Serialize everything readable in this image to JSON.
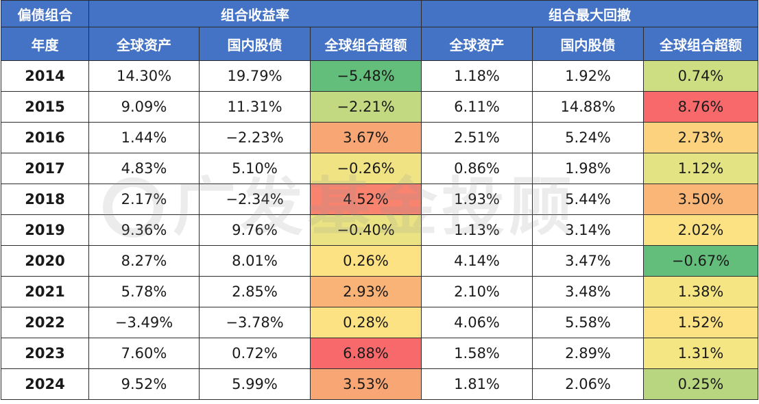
{
  "header": {
    "corner_label": "偏债组合",
    "group_return": "组合收益率",
    "group_drawdown": "组合最大回撤",
    "year_label": "年度",
    "col_global": "全球资产",
    "col_domestic": "国内股债",
    "col_excess": "全球组合超额"
  },
  "watermark": {
    "text": "广发基金投顾"
  },
  "colors": {
    "header_bg": "#4472c4",
    "deep_green": "#63be7b",
    "light_green": "#cddd82",
    "yellow_green": "#e3e383",
    "yellow": "#fde283",
    "light_orange": "#fbc77b",
    "orange": "#f8a774",
    "orange_red": "#f8836f",
    "red": "#f8696b"
  },
  "rows": [
    {
      "year": "2014",
      "ret_global": "14.30%",
      "ret_domestic": "19.79%",
      "ret_excess": "−5.48%",
      "dd_global": "1.18%",
      "dd_domestic": "1.92%",
      "dd_excess": "0.74%",
      "ret_color": "#63be7b",
      "dd_color": "#cddd82"
    },
    {
      "year": "2015",
      "ret_global": "9.09%",
      "ret_domestic": "11.31%",
      "ret_excess": "−2.21%",
      "dd_global": "6.11%",
      "dd_domestic": "14.88%",
      "dd_excess": "8.76%",
      "ret_color": "#c3d981",
      "dd_color": "#f8696b"
    },
    {
      "year": "2016",
      "ret_global": "1.44%",
      "ret_domestic": "−2.23%",
      "ret_excess": "3.67%",
      "dd_global": "2.51%",
      "dd_domestic": "5.24%",
      "dd_excess": "2.73%",
      "ret_color": "#f8a774",
      "dd_color": "#fcd27f"
    },
    {
      "year": "2017",
      "ret_global": "4.83%",
      "ret_domestic": "5.10%",
      "ret_excess": "−0.26%",
      "dd_global": "0.86%",
      "dd_domestic": "1.98%",
      "dd_excess": "1.12%",
      "ret_color": "#f0e383",
      "dd_color": "#e3e383"
    },
    {
      "year": "2018",
      "ret_global": "2.17%",
      "ret_domestic": "−2.34%",
      "ret_excess": "4.52%",
      "dd_global": "1.93%",
      "dd_domestic": "5.44%",
      "dd_excess": "3.50%",
      "ret_color": "#f8836f",
      "dd_color": "#f9b677"
    },
    {
      "year": "2019",
      "ret_global": "9.36%",
      "ret_domestic": "9.76%",
      "ret_excess": "−0.40%",
      "dd_global": "1.13%",
      "dd_domestic": "3.14%",
      "dd_excess": "2.02%",
      "ret_color": "#ebe383",
      "dd_color": "#fde283"
    },
    {
      "year": "2020",
      "ret_global": "8.27%",
      "ret_domestic": "8.01%",
      "ret_excess": "0.26%",
      "dd_global": "4.14%",
      "dd_domestic": "3.47%",
      "dd_excess": "−0.67%",
      "ret_color": "#fde283",
      "dd_color": "#63be7b"
    },
    {
      "year": "2021",
      "ret_global": "5.78%",
      "ret_domestic": "2.85%",
      "ret_excess": "2.93%",
      "dd_global": "2.10%",
      "dd_domestic": "3.48%",
      "dd_excess": "1.38%",
      "ret_color": "#f9b377",
      "dd_color": "#f6e683"
    },
    {
      "year": "2022",
      "ret_global": "−3.49%",
      "ret_domestic": "−3.78%",
      "ret_excess": "0.28%",
      "dd_global": "4.06%",
      "dd_domestic": "5.58%",
      "dd_excess": "1.52%",
      "ret_color": "#fde283",
      "dd_color": "#fde283"
    },
    {
      "year": "2023",
      "ret_global": "7.60%",
      "ret_domestic": "0.72%",
      "ret_excess": "6.88%",
      "dd_global": "1.58%",
      "dd_domestic": "2.89%",
      "dd_excess": "1.31%",
      "ret_color": "#f8696b",
      "dd_color": "#f3e683"
    },
    {
      "year": "2024",
      "ret_global": "9.52%",
      "ret_domestic": "5.99%",
      "ret_excess": "3.53%",
      "dd_global": "1.81%",
      "dd_domestic": "2.06%",
      "dd_excess": "0.25%",
      "ret_color": "#f8a774",
      "dd_color": "#b8d57f"
    }
  ]
}
